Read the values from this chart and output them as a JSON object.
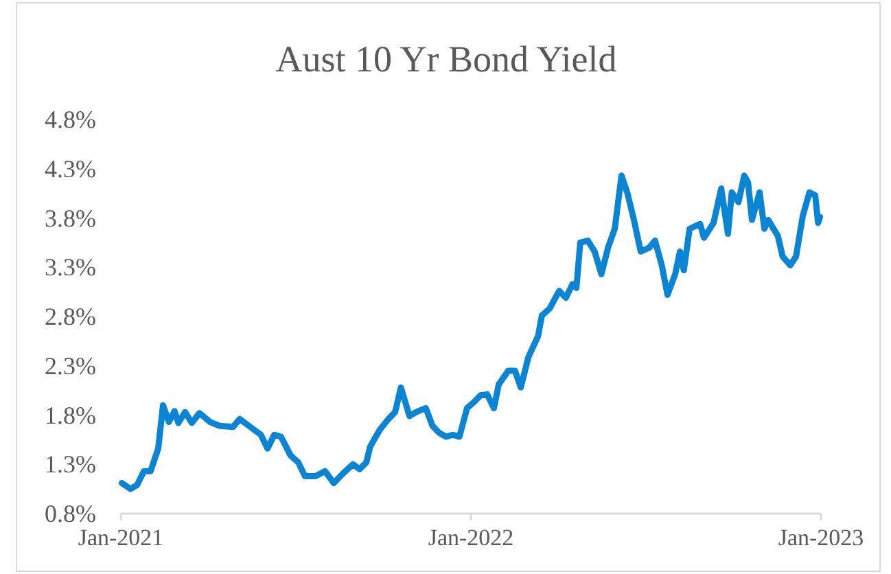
{
  "chart_data": {
    "type": "line",
    "title": "Aust 10 Yr Bond Yield",
    "xlim": [
      "2021-01-01",
      "2023-01-01"
    ],
    "xticks": [
      {
        "value": "2021-01-01",
        "label": "Jan-2021"
      },
      {
        "value": "2022-01-01",
        "label": "Jan-2022"
      },
      {
        "value": "2023-01-01",
        "label": "Jan-2023"
      }
    ],
    "ylim": [
      0.8,
      4.8
    ],
    "yticks": [
      {
        "value": 0.8,
        "label": "0.8%"
      },
      {
        "value": 1.3,
        "label": "1.3%"
      },
      {
        "value": 1.8,
        "label": "1.8%"
      },
      {
        "value": 2.3,
        "label": "2.3%"
      },
      {
        "value": 2.8,
        "label": "2.8%"
      },
      {
        "value": 3.3,
        "label": "3.3%"
      },
      {
        "value": 3.8,
        "label": "3.8%"
      },
      {
        "value": 4.3,
        "label": "4.3%"
      },
      {
        "value": 4.8,
        "label": "4.8%"
      }
    ],
    "grid": false,
    "marker": "none",
    "line_style": "solid",
    "x": [
      "2021-01-02",
      "2021-01-11",
      "2021-01-18",
      "2021-01-25",
      "2021-02-01",
      "2021-02-09",
      "2021-02-14",
      "2021-02-20",
      "2021-02-26",
      "2021-03-02",
      "2021-03-09",
      "2021-03-16",
      "2021-03-24",
      "2021-04-04",
      "2021-04-14",
      "2021-04-28",
      "2021-05-05",
      "2021-05-20",
      "2021-05-27",
      "2021-06-03",
      "2021-06-10",
      "2021-06-17",
      "2021-06-27",
      "2021-07-05",
      "2021-07-12",
      "2021-07-23",
      "2021-08-02",
      "2021-08-11",
      "2021-08-21",
      "2021-08-31",
      "2021-09-07",
      "2021-09-14",
      "2021-09-18",
      "2021-09-28",
      "2021-10-07",
      "2021-10-14",
      "2021-10-20",
      "2021-10-29",
      "2021-11-05",
      "2021-11-15",
      "2021-11-22",
      "2021-11-29",
      "2021-12-06",
      "2021-12-13",
      "2021-12-20",
      "2021-12-28",
      "2022-01-04",
      "2022-01-11",
      "2022-01-18",
      "2022-01-25",
      "2022-01-30",
      "2022-02-09",
      "2022-02-16",
      "2022-02-22",
      "2022-03-02",
      "2022-03-12",
      "2022-03-16",
      "2022-03-24",
      "2022-04-03",
      "2022-04-10",
      "2022-04-17",
      "2022-04-21",
      "2022-04-25",
      "2022-05-03",
      "2022-05-10",
      "2022-05-17",
      "2022-05-24",
      "2022-05-31",
      "2022-06-07",
      "2022-06-13",
      "2022-06-20",
      "2022-06-27",
      "2022-07-06",
      "2022-07-12",
      "2022-07-19",
      "2022-07-25",
      "2022-08-02",
      "2022-08-07",
      "2022-08-11",
      "2022-08-17",
      "2022-08-28",
      "2022-09-01",
      "2022-09-11",
      "2022-09-19",
      "2022-09-26",
      "2022-09-30",
      "2022-10-07",
      "2022-10-13",
      "2022-10-17",
      "2022-10-21",
      "2022-10-29",
      "2022-11-03",
      "2022-11-07",
      "2022-11-17",
      "2022-11-22",
      "2022-11-30",
      "2022-12-06",
      "2022-12-13",
      "2022-12-20",
      "2022-12-26",
      "2022-12-29",
      "2022-12-31"
    ],
    "series": [
      {
        "color": "#0b84d4",
        "values": [
          1.11,
          1.05,
          1.09,
          1.23,
          1.23,
          1.46,
          1.9,
          1.73,
          1.84,
          1.72,
          1.83,
          1.72,
          1.82,
          1.73,
          1.69,
          1.68,
          1.76,
          1.65,
          1.6,
          1.46,
          1.6,
          1.58,
          1.39,
          1.32,
          1.18,
          1.18,
          1.23,
          1.11,
          1.21,
          1.3,
          1.25,
          1.32,
          1.48,
          1.65,
          1.76,
          1.83,
          2.08,
          1.79,
          1.83,
          1.87,
          1.69,
          1.62,
          1.58,
          1.6,
          1.58,
          1.87,
          1.93,
          2.0,
          2.01,
          1.87,
          2.11,
          2.25,
          2.25,
          2.08,
          2.39,
          2.6,
          2.81,
          2.88,
          3.06,
          2.99,
          3.13,
          3.09,
          3.55,
          3.57,
          3.46,
          3.23,
          3.5,
          3.69,
          4.23,
          4.06,
          3.78,
          3.46,
          3.5,
          3.57,
          3.32,
          3.02,
          3.23,
          3.46,
          3.27,
          3.69,
          3.74,
          3.6,
          3.75,
          4.1,
          3.64,
          4.06,
          3.96,
          4.23,
          4.16,
          3.78,
          4.06,
          3.69,
          3.78,
          3.62,
          3.41,
          3.32,
          3.41,
          3.82,
          4.06,
          4.03,
          3.75,
          3.81
        ]
      }
    ]
  }
}
